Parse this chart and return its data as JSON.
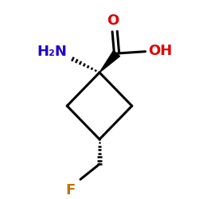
{
  "bg_color": "#ffffff",
  "bond_color": "#000000",
  "bond_lw": 2.2,
  "nh2_label": "H₂N",
  "nh2_color": "#2200cc",
  "oh_label": "OH",
  "oh_color": "#dd0000",
  "o_label": "O",
  "o_color": "#dd0000",
  "f_label": "F",
  "f_color": "#bb7700"
}
